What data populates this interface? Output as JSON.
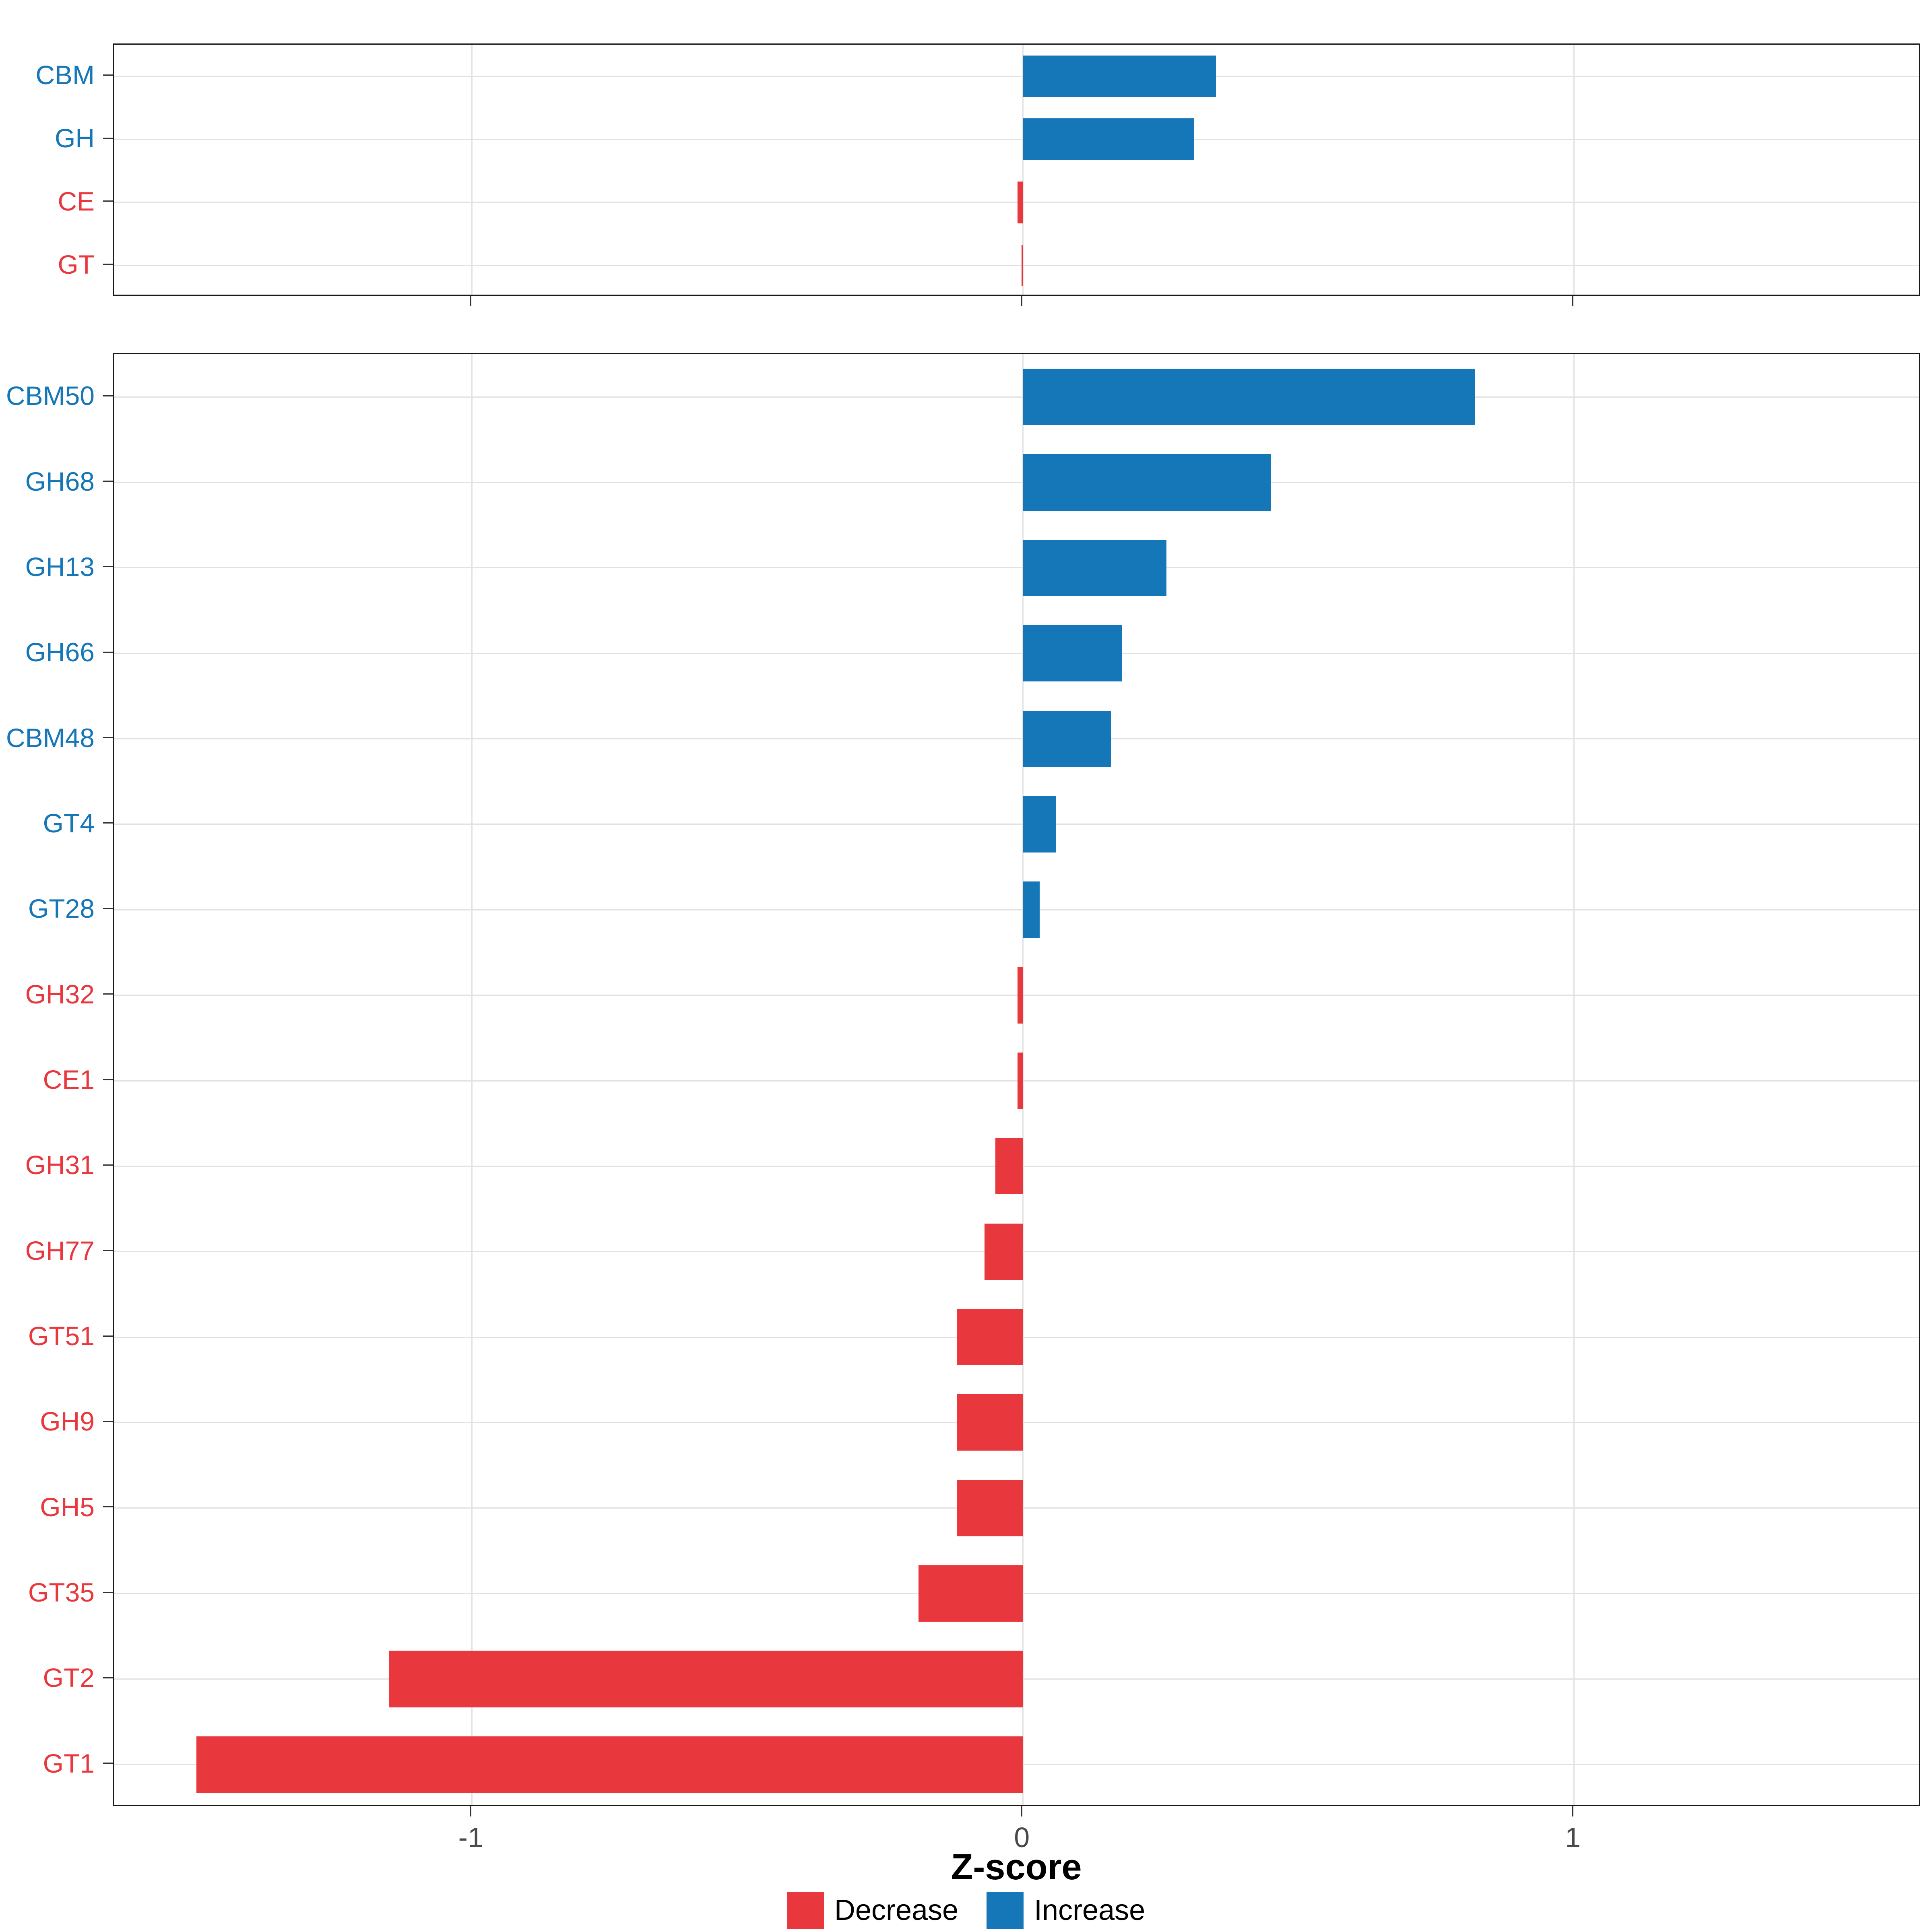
{
  "figure": {
    "xlabel": "Z-score",
    "colors": {
      "increase": "#1577B7",
      "decrease": "#E8373D"
    },
    "legend": [
      {
        "label": "Decrease",
        "color": "#E8373D"
      },
      {
        "label": "Increase",
        "color": "#1577B7"
      }
    ]
  },
  "chart_data": [
    {
      "type": "bar",
      "orientation": "horizontal",
      "panel": "cazyme-family-class",
      "categories": [
        "CBM",
        "GH",
        "CE",
        "GT"
      ],
      "values": [
        0.35,
        0.31,
        -0.01,
        -0.003
      ],
      "xlim": [
        -1.65,
        1.63
      ],
      "x_ticks": [
        -1,
        0,
        1
      ],
      "grid": true,
      "bar_colors_rule": "positive=increase(blue), negative=decrease(red)"
    },
    {
      "type": "bar",
      "orientation": "horizontal",
      "panel": "cazyme-subfamily",
      "categories": [
        "CBM50",
        "GH68",
        "GH13",
        "GH66",
        "CBM48",
        "GT4",
        "GT28",
        "GH32",
        "CE1",
        "GH31",
        "GH77",
        "GT51",
        "GH9",
        "GH5",
        "GT35",
        "GT2",
        "GT1"
      ],
      "values": [
        0.82,
        0.45,
        0.26,
        0.18,
        0.16,
        0.06,
        0.03,
        -0.01,
        -0.01,
        -0.05,
        -0.07,
        -0.12,
        -0.12,
        -0.12,
        -0.19,
        -1.15,
        -1.5
      ],
      "xlim": [
        -1.65,
        1.63
      ],
      "x_ticks": [
        -1,
        0,
        1
      ],
      "grid": true,
      "bar_colors_rule": "positive=increase(blue), negative=decrease(red)"
    }
  ]
}
